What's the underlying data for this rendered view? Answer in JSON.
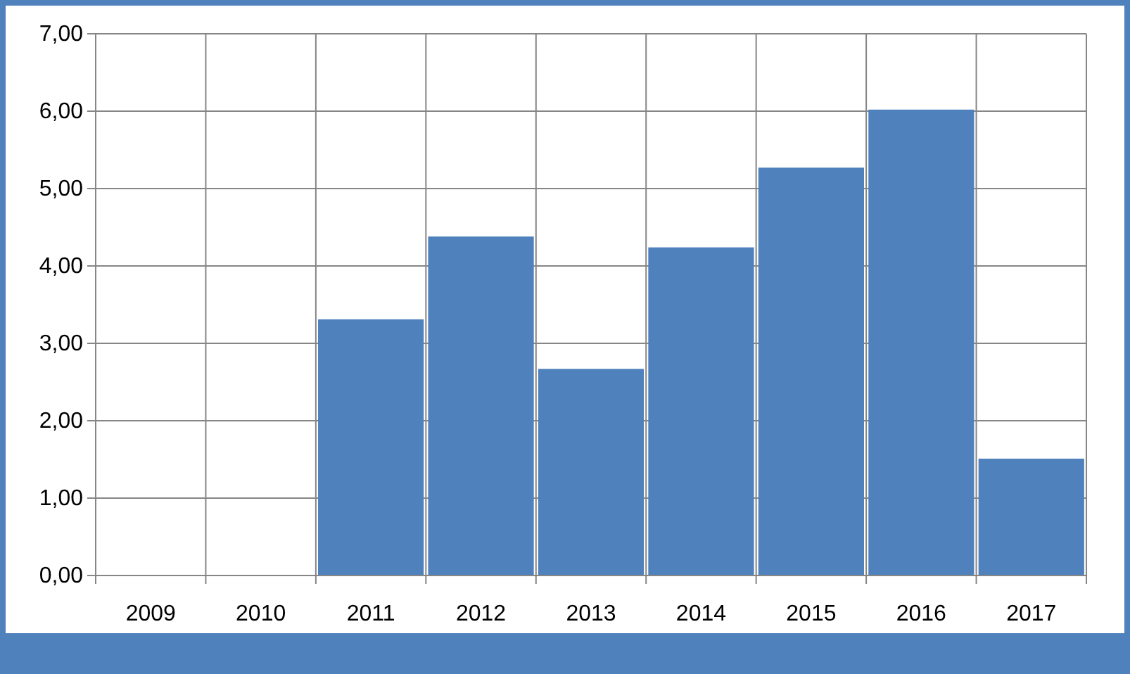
{
  "chart_data": {
    "type": "bar",
    "categories": [
      "2009",
      "2010",
      "2011",
      "2012",
      "2013",
      "2014",
      "2015",
      "2016",
      "2017"
    ],
    "values": [
      null,
      null,
      3.31,
      4.38,
      2.67,
      4.24,
      5.27,
      6.02,
      1.51
    ],
    "color": "#4f81bd",
    "ylim": [
      0,
      7
    ],
    "yticks": [
      {
        "value": 0,
        "label": "0,00"
      },
      {
        "value": 1,
        "label": "1,00"
      },
      {
        "value": 2,
        "label": "2,00"
      },
      {
        "value": 3,
        "label": "3,00"
      },
      {
        "value": 4,
        "label": "4,00"
      },
      {
        "value": 5,
        "label": "5,00"
      },
      {
        "value": 6,
        "label": "6,00"
      },
      {
        "value": 7,
        "label": "7,00"
      }
    ],
    "grid": true
  }
}
